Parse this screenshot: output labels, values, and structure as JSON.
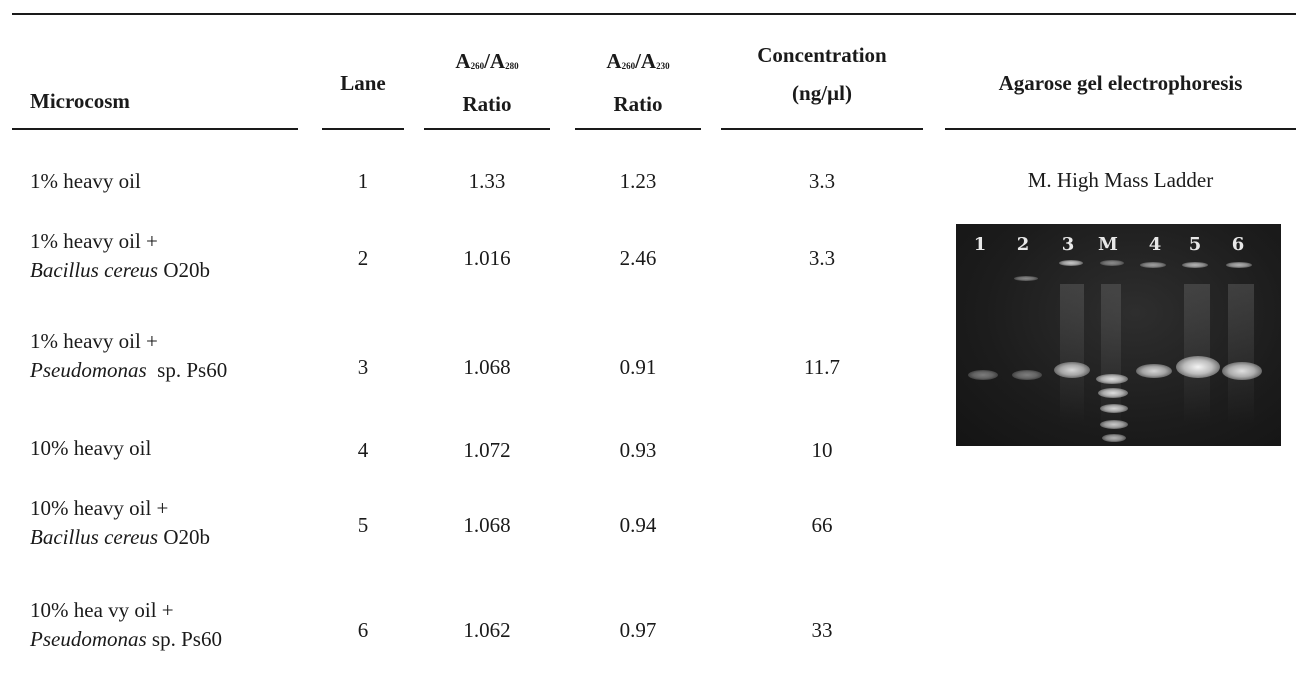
{
  "table": {
    "headers": {
      "microcosm": "Microcosm",
      "lane": "Lane",
      "ratio1_top_a1": "A",
      "ratio1_top_s1": "260",
      "ratio1_top_slash": "/",
      "ratio1_top_a2": "A",
      "ratio1_top_s2": "280",
      "ratio1_bottom": "Ratio",
      "ratio2_top_a1": "A",
      "ratio2_top_s1": "260",
      "ratio2_top_slash": "/",
      "ratio2_top_a2": "A",
      "ratio2_top_s2": "230",
      "ratio2_bottom": "Ratio",
      "conc_top": "Concentration",
      "conc_bottom": "(ng/µl)",
      "gel": "Agarose gel electrophoresis"
    },
    "rows": [
      {
        "line1": "1% heavy oil",
        "species": "",
        "strain": "",
        "lane": "1",
        "r1": "1.33",
        "r2": "1.23",
        "conc": "3.3"
      },
      {
        "line1": "1% heavy oil +",
        "species": "Bacillus cereus",
        "strain": " O20b",
        "lane": "2",
        "r1": "1.016",
        "r2": "2.46",
        "conc": "3.3"
      },
      {
        "line1": "1% heavy oil +",
        "species": "Pseudomonas",
        "strain": "  sp. Ps60",
        "lane": "3",
        "r1": "1.068",
        "r2": "0.91",
        "conc": "11.7"
      },
      {
        "line1": "10% heavy oil",
        "species": "",
        "strain": "",
        "lane": "4",
        "r1": "1.072",
        "r2": "0.93",
        "conc": "10"
      },
      {
        "line1": "10% heavy oil +",
        "species": "Bacillus cereus",
        "strain": " O20b",
        "lane": "5",
        "r1": "1.068",
        "r2": "0.94",
        "conc": "66"
      },
      {
        "line1": "10% hea vy oil +",
        "species": "Pseudomonas",
        "strain": " sp. Ps60",
        "lane": "6",
        "r1": "1.062",
        "r2": "0.97",
        "conc": "33"
      }
    ]
  },
  "gel": {
    "caption": "M. High Mass Ladder",
    "lane_labels": [
      "1",
      "2",
      "3",
      "M",
      "4",
      "5",
      "6"
    ]
  }
}
